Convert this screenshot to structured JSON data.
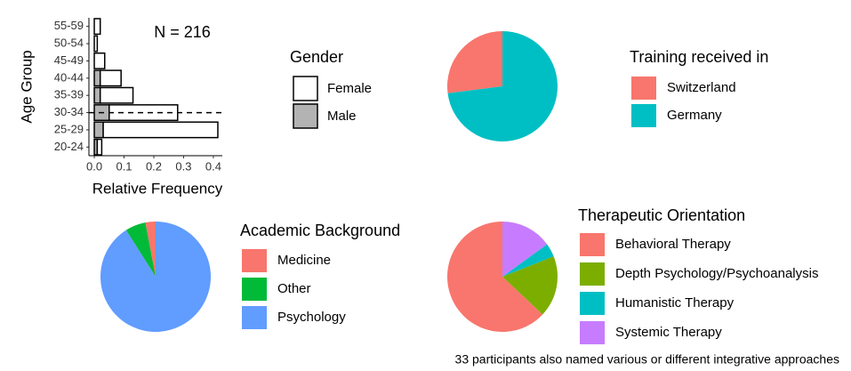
{
  "chart_data": [
    {
      "type": "bar",
      "orientation": "horizontal",
      "stacked": true,
      "xlabel": "Relative Frequency",
      "ylabel": "Age Group",
      "annotation": "N = 216",
      "legend_title": "Gender",
      "categories": [
        "20-24",
        "25-29",
        "30-34",
        "35-39",
        "40-44",
        "45-49",
        "50-54",
        "55-59"
      ],
      "series": [
        {
          "name": "Female",
          "color": "#ffffff",
          "values": [
            0.015,
            0.385,
            0.23,
            0.11,
            0.07,
            0.035,
            0.01,
            0.02
          ]
        },
        {
          "name": "Male",
          "color": "#b3b3b3",
          "values": [
            0.01,
            0.03,
            0.05,
            0.02,
            0.02,
            0,
            0,
            0
          ]
        }
      ],
      "reference_line": "30-34",
      "xlim": [
        -0.018,
        0.43
      ],
      "xticks": [
        {
          "value": 0,
          "label": "0.0"
        },
        0.1,
        0.2,
        0.3,
        0.4
      ]
    },
    {
      "type": "pie",
      "legend_title": "Training received in",
      "categories": [
        "Switzerland",
        "Germany"
      ],
      "values": [
        27,
        73
      ],
      "colors": [
        "#F8766D",
        "#00BFC4"
      ]
    },
    {
      "type": "pie",
      "legend_title": "Academic Background",
      "categories": [
        "Medicine",
        "Other",
        "Psychology"
      ],
      "values": [
        3,
        6,
        91
      ],
      "colors": [
        "#F8766D",
        "#00BA38",
        "#619CFF"
      ]
    },
    {
      "type": "pie",
      "legend_title": "Therapeutic Orientation",
      "categories": [
        "Behavioral Therapy",
        "Depth Psychology/Psychoanalysis",
        "Humanistic Therapy",
        "Systemic Therapy"
      ],
      "values": [
        63,
        18,
        4,
        15
      ],
      "colors": [
        "#F8766D",
        "#7CAE00",
        "#00BFC4",
        "#C77CFF"
      ],
      "note": "33 participants also named various or different integrative approaches"
    }
  ]
}
